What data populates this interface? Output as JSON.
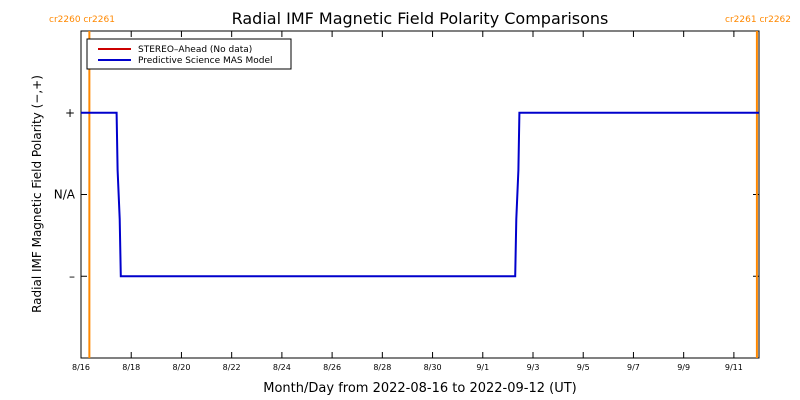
{
  "chart_data": {
    "type": "line",
    "title": "Radial IMF Magnetic Field Polarity Comparisons",
    "xlabel": "Month/Day from 2022-08-16 to 2022-09-12 (UT)",
    "ylabel": "Radial IMF Magnetic Field Polarity (−,+)",
    "xlim": [
      "2022-08-16",
      "2022-09-12"
    ],
    "ylim": [
      -2,
      2
    ],
    "x_ticks": [
      {
        "date": "2022-08-16",
        "label": "8/16"
      },
      {
        "date": "2022-08-18",
        "label": "8/18"
      },
      {
        "date": "2022-08-20",
        "label": "8/20"
      },
      {
        "date": "2022-08-22",
        "label": "8/22"
      },
      {
        "date": "2022-08-24",
        "label": "8/24"
      },
      {
        "date": "2022-08-26",
        "label": "8/26"
      },
      {
        "date": "2022-08-28",
        "label": "8/28"
      },
      {
        "date": "2022-08-30",
        "label": "8/30"
      },
      {
        "date": "2022-09-01",
        "label": "9/1"
      },
      {
        "date": "2022-09-03",
        "label": "9/3"
      },
      {
        "date": "2022-09-05",
        "label": "9/5"
      },
      {
        "date": "2022-09-07",
        "label": "9/7"
      },
      {
        "date": "2022-09-09",
        "label": "9/9"
      },
      {
        "date": "2022-09-11",
        "label": "9/11"
      }
    ],
    "y_ticks": [
      {
        "value": 1,
        "label": "+"
      },
      {
        "value": 0,
        "label": "N/A"
      },
      {
        "value": -1,
        "label": "–"
      }
    ],
    "grid": false,
    "legend_position": "top-left",
    "series": [
      {
        "name": "STEREO–Ahead (No data)",
        "color": "#cc0000",
        "points": []
      },
      {
        "name": "Predictive Science MAS Model",
        "color": "#0000cc",
        "points": [
          {
            "x": "2022-08-16T00:00",
            "y": 1
          },
          {
            "x": "2022-08-17T10:00",
            "y": 1
          },
          {
            "x": "2022-08-17T11:00",
            "y": 0.3
          },
          {
            "x": "2022-08-17T13:00",
            "y": -0.3
          },
          {
            "x": "2022-08-17T14:00",
            "y": -1
          },
          {
            "x": "2022-09-02T07:00",
            "y": -1
          },
          {
            "x": "2022-09-02T08:00",
            "y": -0.3
          },
          {
            "x": "2022-09-02T10:00",
            "y": 0.3
          },
          {
            "x": "2022-09-02T11:00",
            "y": 1
          },
          {
            "x": "2022-09-12T00:00",
            "y": 1
          }
        ]
      }
    ],
    "carrington_markers": [
      {
        "date": "2022-08-16T08:00",
        "labels": [
          "cr2260",
          "cr2261"
        ],
        "side": "left",
        "color": "#ff8800"
      },
      {
        "date": "2022-09-11T22:00",
        "labels": [
          "cr2261",
          "cr2262"
        ],
        "side": "right",
        "color": "#ff8800"
      }
    ]
  }
}
